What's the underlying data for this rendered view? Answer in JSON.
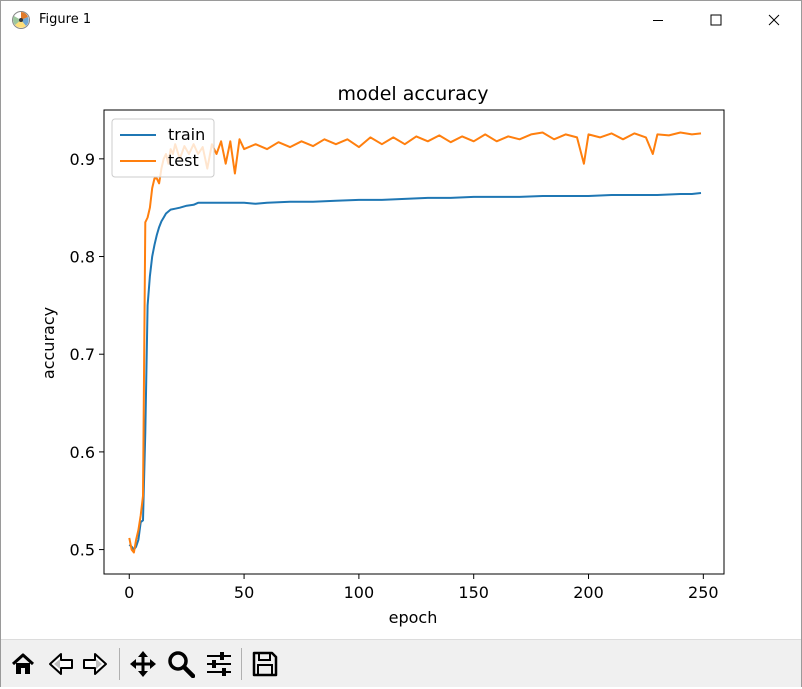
{
  "window": {
    "title": "Figure 1",
    "icons": {
      "app": "matplotlib-icon",
      "minimize": "minimize-icon",
      "maximize": "maximize-icon",
      "close": "close-icon"
    }
  },
  "toolbar": {
    "buttons": [
      {
        "icon": "home-icon",
        "name": "home-button"
      },
      {
        "icon": "back-icon",
        "name": "back-button"
      },
      {
        "icon": "forward-icon",
        "name": "forward-button"
      },
      {
        "icon": "pan-icon",
        "name": "pan-button"
      },
      {
        "icon": "zoom-icon",
        "name": "zoom-button"
      },
      {
        "icon": "configure-icon",
        "name": "configure-subplots-button"
      },
      {
        "icon": "save-icon",
        "name": "save-button"
      }
    ]
  },
  "chart_data": {
    "type": "line",
    "title": "model accuracy",
    "xlabel": "epoch",
    "ylabel": "accuracy",
    "xlim": [
      -11,
      259
    ],
    "ylim": [
      0.475,
      0.95
    ],
    "xticks": [
      0,
      50,
      100,
      150,
      200,
      250
    ],
    "yticks": [
      0.5,
      0.6,
      0.7,
      0.8,
      0.9
    ],
    "xtick_labels": [
      "0",
      "50",
      "100",
      "150",
      "200",
      "250"
    ],
    "ytick_labels": [
      "0.5",
      "0.6",
      "0.7",
      "0.8",
      "0.9"
    ],
    "grid": false,
    "legend_position": "upper left",
    "series": [
      {
        "name": "train",
        "color": "#1f77b4",
        "x": [
          0,
          1,
          2,
          3,
          4,
          5,
          6,
          7,
          8,
          9,
          10,
          11,
          12,
          13,
          14,
          15,
          16,
          18,
          20,
          22,
          25,
          28,
          30,
          35,
          40,
          45,
          50,
          55,
          60,
          70,
          80,
          90,
          100,
          110,
          120,
          130,
          140,
          150,
          160,
          170,
          180,
          190,
          200,
          210,
          220,
          230,
          240,
          245,
          249
        ],
        "y": [
          0.505,
          0.503,
          0.5,
          0.503,
          0.51,
          0.528,
          0.53,
          0.62,
          0.75,
          0.78,
          0.8,
          0.812,
          0.822,
          0.83,
          0.836,
          0.84,
          0.844,
          0.848,
          0.849,
          0.85,
          0.852,
          0.853,
          0.855,
          0.855,
          0.855,
          0.855,
          0.855,
          0.854,
          0.855,
          0.856,
          0.856,
          0.857,
          0.858,
          0.858,
          0.859,
          0.86,
          0.86,
          0.861,
          0.861,
          0.861,
          0.862,
          0.862,
          0.862,
          0.863,
          0.863,
          0.863,
          0.864,
          0.864,
          0.865
        ]
      },
      {
        "name": "test",
        "color": "#ff7f0e",
        "x": [
          0,
          1,
          2,
          3,
          4,
          5,
          6,
          7,
          8,
          9,
          10,
          11,
          12,
          13,
          14,
          15,
          16,
          17,
          18,
          19,
          20,
          22,
          24,
          26,
          28,
          30,
          32,
          34,
          36,
          38,
          40,
          42,
          44,
          46,
          48,
          50,
          55,
          60,
          65,
          70,
          75,
          80,
          85,
          90,
          95,
          100,
          105,
          110,
          115,
          120,
          125,
          130,
          135,
          140,
          145,
          150,
          155,
          160,
          165,
          170,
          175,
          180,
          185,
          190,
          195,
          198,
          200,
          205,
          210,
          215,
          220,
          225,
          228,
          230,
          235,
          240,
          245,
          249
        ],
        "y": [
          0.512,
          0.5,
          0.497,
          0.51,
          0.52,
          0.535,
          0.555,
          0.835,
          0.84,
          0.85,
          0.87,
          0.88,
          0.88,
          0.875,
          0.89,
          0.9,
          0.905,
          0.895,
          0.91,
          0.905,
          0.915,
          0.9,
          0.913,
          0.905,
          0.915,
          0.905,
          0.912,
          0.89,
          0.915,
          0.905,
          0.918,
          0.895,
          0.918,
          0.885,
          0.92,
          0.91,
          0.915,
          0.91,
          0.917,
          0.912,
          0.918,
          0.913,
          0.92,
          0.915,
          0.92,
          0.912,
          0.922,
          0.915,
          0.922,
          0.915,
          0.923,
          0.918,
          0.924,
          0.917,
          0.923,
          0.918,
          0.925,
          0.918,
          0.923,
          0.92,
          0.925,
          0.927,
          0.92,
          0.925,
          0.922,
          0.895,
          0.925,
          0.922,
          0.926,
          0.92,
          0.926,
          0.922,
          0.905,
          0.925,
          0.924,
          0.927,
          0.925,
          0.926
        ]
      }
    ]
  }
}
